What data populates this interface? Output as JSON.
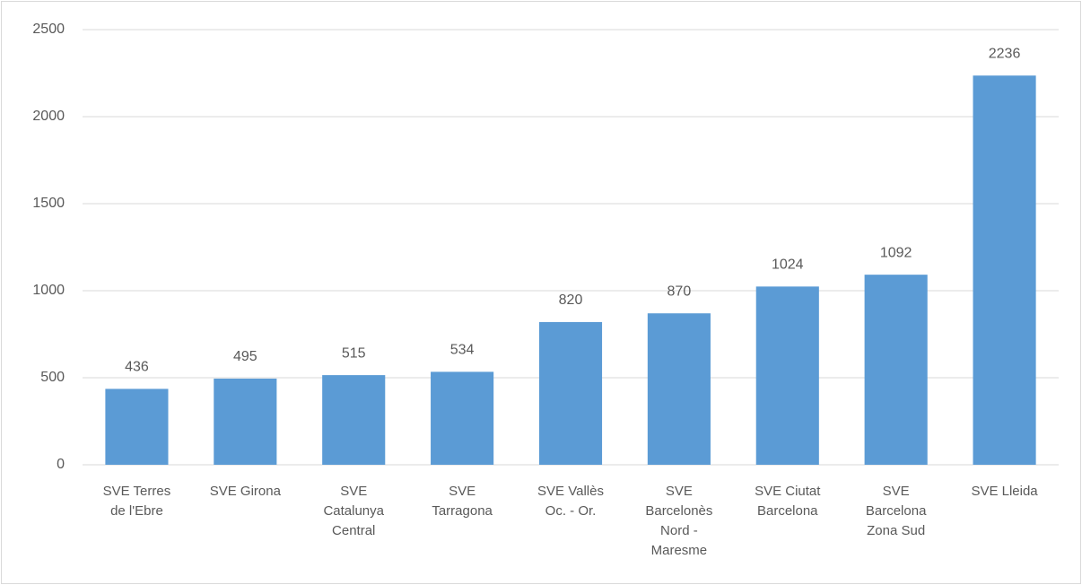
{
  "chart_data": {
    "type": "bar",
    "categories": [
      "SVE Terres de l'Ebre",
      "SVE Girona",
      "SVE Catalunya Central",
      "SVE Tarragona",
      "SVE Vallès Oc. - Or.",
      "SVE Barcelonès Nord - Maresme",
      "SVE Ciutat Barcelona",
      "SVE Barcelona Zona Sud",
      "SVE Lleida"
    ],
    "values": [
      436,
      495,
      515,
      534,
      820,
      870,
      1024,
      1092,
      2236
    ],
    "color": "#5b9bd5",
    "ylim": [
      0,
      2500
    ],
    "yticks": [
      0,
      500,
      1000,
      1500,
      2000,
      2500
    ],
    "grid": true
  }
}
